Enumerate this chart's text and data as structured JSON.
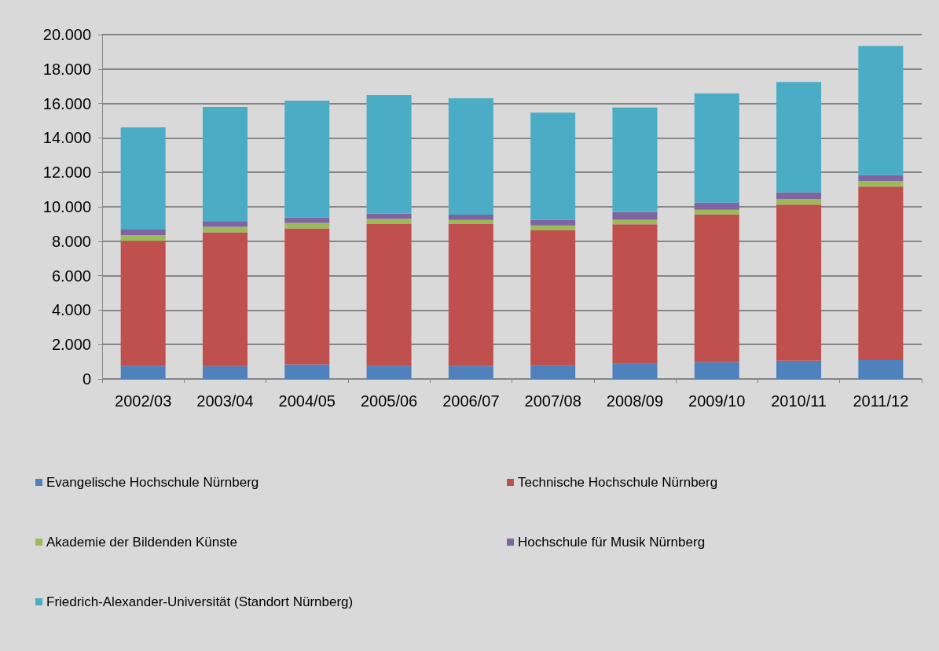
{
  "chart_data": {
    "type": "bar",
    "stacked": true,
    "grid": "y",
    "legend": "bottom",
    "categories": [
      "2002/03",
      "2003/04",
      "2004/05",
      "2005/06",
      "2006/07",
      "2007/08",
      "2008/09",
      "2009/10",
      "2010/11",
      "2011/12"
    ],
    "ylim": [
      0,
      20000
    ],
    "yticks": [
      {
        "value": 0,
        "label": "0"
      },
      {
        "value": 2000,
        "label": "2.000"
      },
      {
        "value": 4000,
        "label": "4.000"
      },
      {
        "value": 6000,
        "label": "6.000"
      },
      {
        "value": 8000,
        "label": "8.000"
      },
      {
        "value": 10000,
        "label": "10.000"
      },
      {
        "value": 12000,
        "label": "12.000"
      },
      {
        "value": 14000,
        "label": "14.000"
      },
      {
        "value": 16000,
        "label": "16.000"
      },
      {
        "value": 18000,
        "label": "18.000"
      },
      {
        "value": 20000,
        "label": "20.000"
      }
    ],
    "series": [
      {
        "name": "Evangelische Hochschule Nürnberg",
        "color": "#4f81bd",
        "values": [
          770,
          740,
          840,
          760,
          770,
          790,
          880,
          980,
          1060,
          1100
        ]
      },
      {
        "name": "Technische Hochschule Nürnberg",
        "color": "#c0504d",
        "values": [
          7260,
          7780,
          7900,
          8240,
          8220,
          7840,
          8100,
          8580,
          9070,
          10080
        ]
      },
      {
        "name": "Akademie der Bildenden Künste",
        "color": "#9bbb59",
        "values": [
          330,
          320,
          320,
          300,
          250,
          290,
          270,
          270,
          320,
          320
        ]
      },
      {
        "name": "Hochschule für Musik Nürnberg",
        "color": "#8064a2",
        "values": [
          320,
          330,
          310,
          300,
          300,
          310,
          440,
          410,
          380,
          340
        ]
      },
      {
        "name": "Friedrich-Alexander-Universität (Standort Nürnberg)",
        "color": "#4bacc6",
        "values": [
          5930,
          6630,
          6790,
          6880,
          6760,
          6240,
          6080,
          6350,
          6420,
          7500
        ]
      }
    ]
  }
}
